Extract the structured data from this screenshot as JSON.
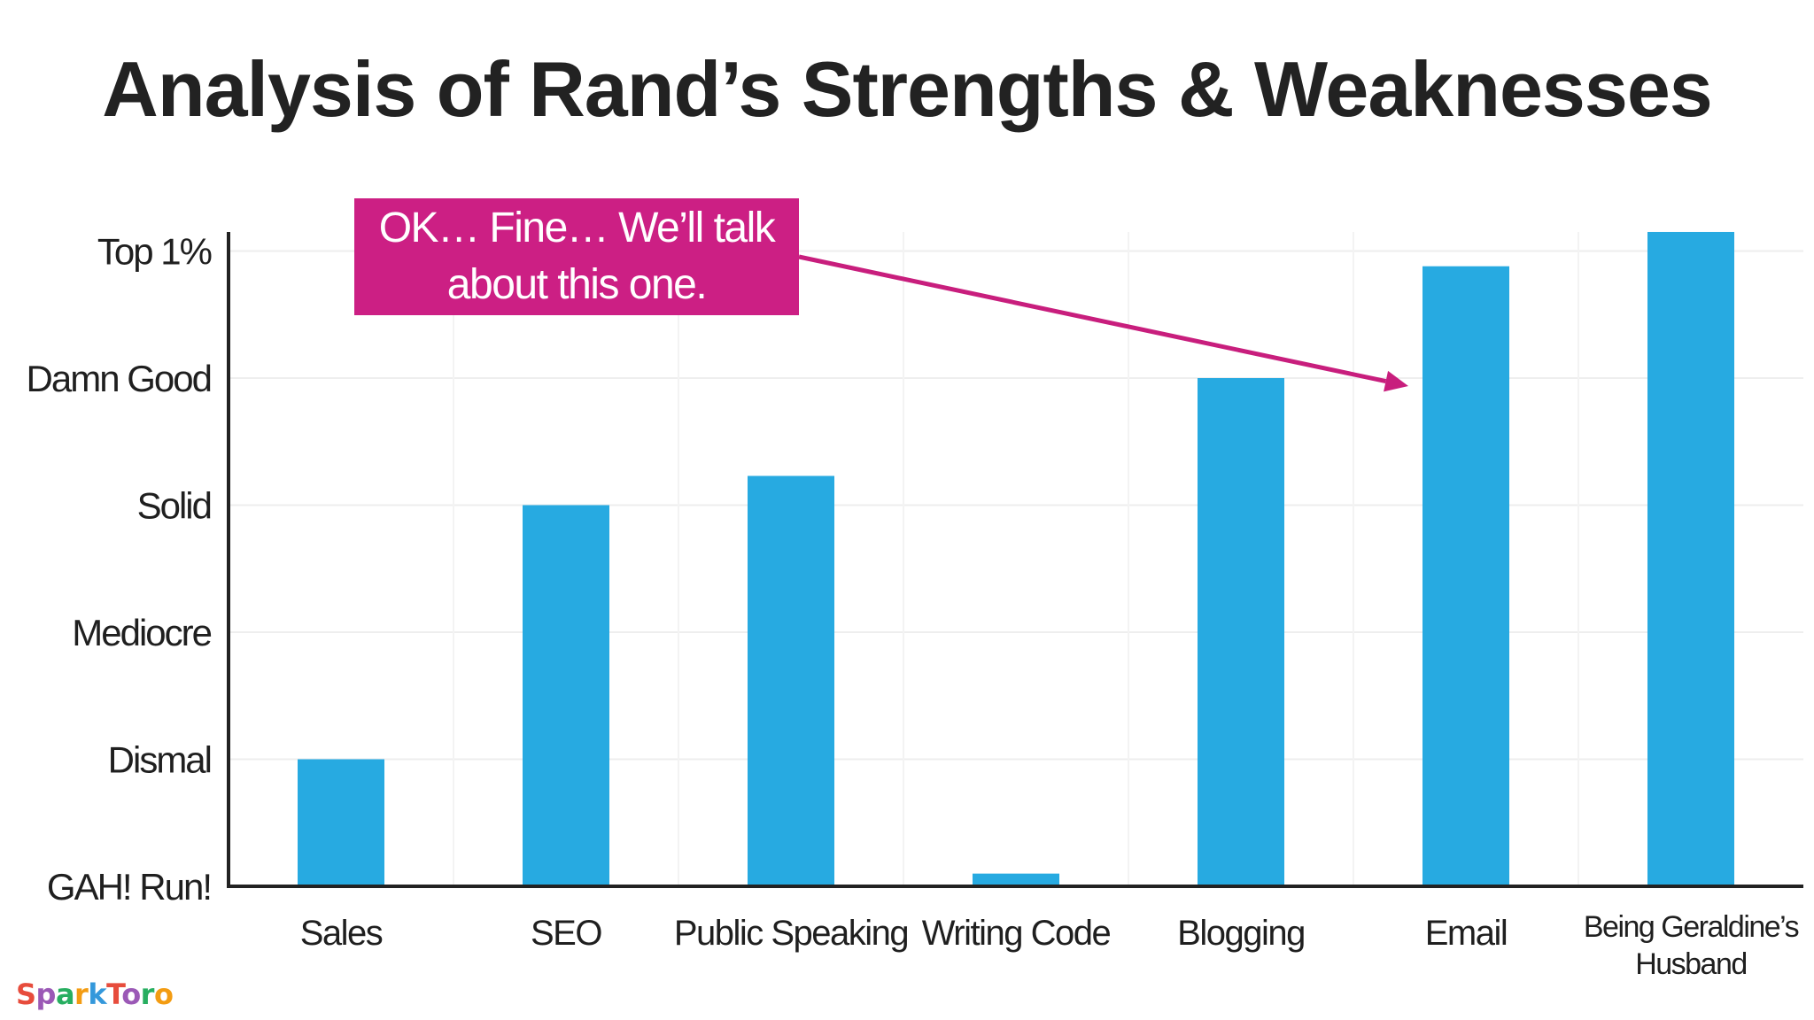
{
  "slide": {
    "title": "Analysis of Rand’s Strengths & Weaknesses",
    "callout": {
      "line1": "OK… Fine… We’ll talk",
      "line2": "about this one."
    },
    "logo": "SparkToro",
    "colors": {
      "bar": "#27aae1",
      "callout": "#cc1f84",
      "arrow": "#c81e7d",
      "axis": "#222222",
      "grid": "#eeeeee"
    }
  },
  "chart_data": {
    "type": "bar",
    "categories": [
      [
        "Sales"
      ],
      [
        "SEO"
      ],
      [
        "Public Speaking"
      ],
      [
        "Writing Code"
      ],
      [
        "Blogging"
      ],
      [
        "Email"
      ],
      [
        "Being Geraldine’s",
        "Husband"
      ]
    ],
    "values": [
      1.0,
      3.0,
      3.23,
      0.1,
      4.0,
      4.88,
      5.15
    ],
    "y_ticks": [
      "GAH! Run!",
      "Dismal",
      "Mediocre",
      "Solid",
      "Damn Good",
      "Top 1%"
    ],
    "ylim": [
      0,
      5.15
    ],
    "grid": true,
    "annotation": {
      "text": "OK… Fine… We’ll talk about this one.",
      "points_to": "Email"
    }
  }
}
